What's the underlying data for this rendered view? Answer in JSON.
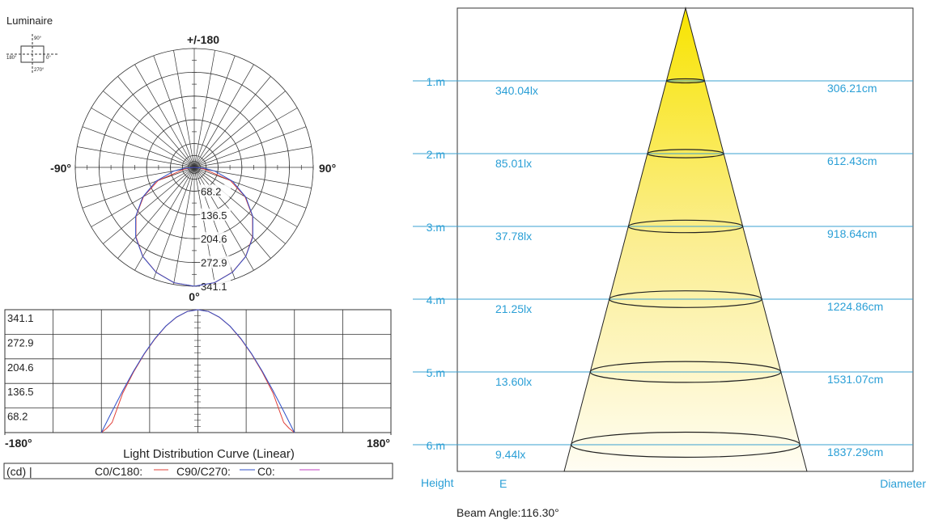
{
  "luminaire": {
    "title": "Luminaire",
    "labels": [
      "90°",
      "180°",
      "0°",
      "270°"
    ]
  },
  "polar": {
    "top": "+/-180",
    "left": "-90°",
    "right": "90°",
    "bottom": "0°",
    "rings": [
      68.2,
      136.5,
      204.6,
      272.9,
      341.1
    ]
  },
  "curves": {
    "angles": [
      -90,
      -85,
      -80,
      -70,
      -60,
      -50,
      -40,
      -30,
      -20,
      -10,
      0,
      10,
      20,
      30,
      40,
      50,
      60,
      70,
      80,
      85,
      90
    ],
    "series": [
      {
        "name": "C0/C180:",
        "color": "#e0403a",
        "values": [
          0,
          12,
          28,
          110,
          168,
          218,
          260,
          295,
          320,
          336,
          341.1,
          336,
          320,
          295,
          260,
          218,
          168,
          110,
          28,
          12,
          0
        ]
      },
      {
        "name": "C90/C270:",
        "color": "#3050c8",
        "values": [
          0,
          29.7,
          59.2,
          116.7,
          170.6,
          219.3,
          261.3,
          295.4,
          320.5,
          335.9,
          341.1,
          335.9,
          320.5,
          295.4,
          261.3,
          219.3,
          170.6,
          116.7,
          59.2,
          29.7,
          0
        ]
      }
    ]
  },
  "linear": {
    "title": "Light Distribution Curve (Linear)",
    "unit": "(cd) |",
    "extra_legend": {
      "name": "C0:",
      "color": "#c040c0"
    },
    "ylim": [
      0,
      341.1
    ],
    "yticks": [
      68.2,
      136.5,
      204.6,
      272.9,
      341.1
    ],
    "xlim": [
      -180,
      180
    ],
    "xticks": [
      {
        "value": -180,
        "label": "-180°"
      },
      {
        "value": 180,
        "label": "180°"
      }
    ]
  },
  "cone": {
    "rows": [
      {
        "height": "1.m",
        "e": "340.04lx",
        "diameter": "306.21cm"
      },
      {
        "height": "2.m",
        "e": "85.01lx",
        "diameter": "612.43cm"
      },
      {
        "height": "3.m",
        "e": "37.78lx",
        "diameter": "918.64cm"
      },
      {
        "height": "4.m",
        "e": "21.25lx",
        "diameter": "1224.86cm"
      },
      {
        "height": "5.m",
        "e": "13.60lx",
        "diameter": "1531.07cm"
      },
      {
        "height": "6.m",
        "e": "9.44lx",
        "diameter": "1837.29cm"
      }
    ],
    "headers": {
      "height": "Height",
      "e": "E",
      "diameter": "Diameter"
    },
    "beam_angle": "Beam Angle:116.30°"
  }
}
